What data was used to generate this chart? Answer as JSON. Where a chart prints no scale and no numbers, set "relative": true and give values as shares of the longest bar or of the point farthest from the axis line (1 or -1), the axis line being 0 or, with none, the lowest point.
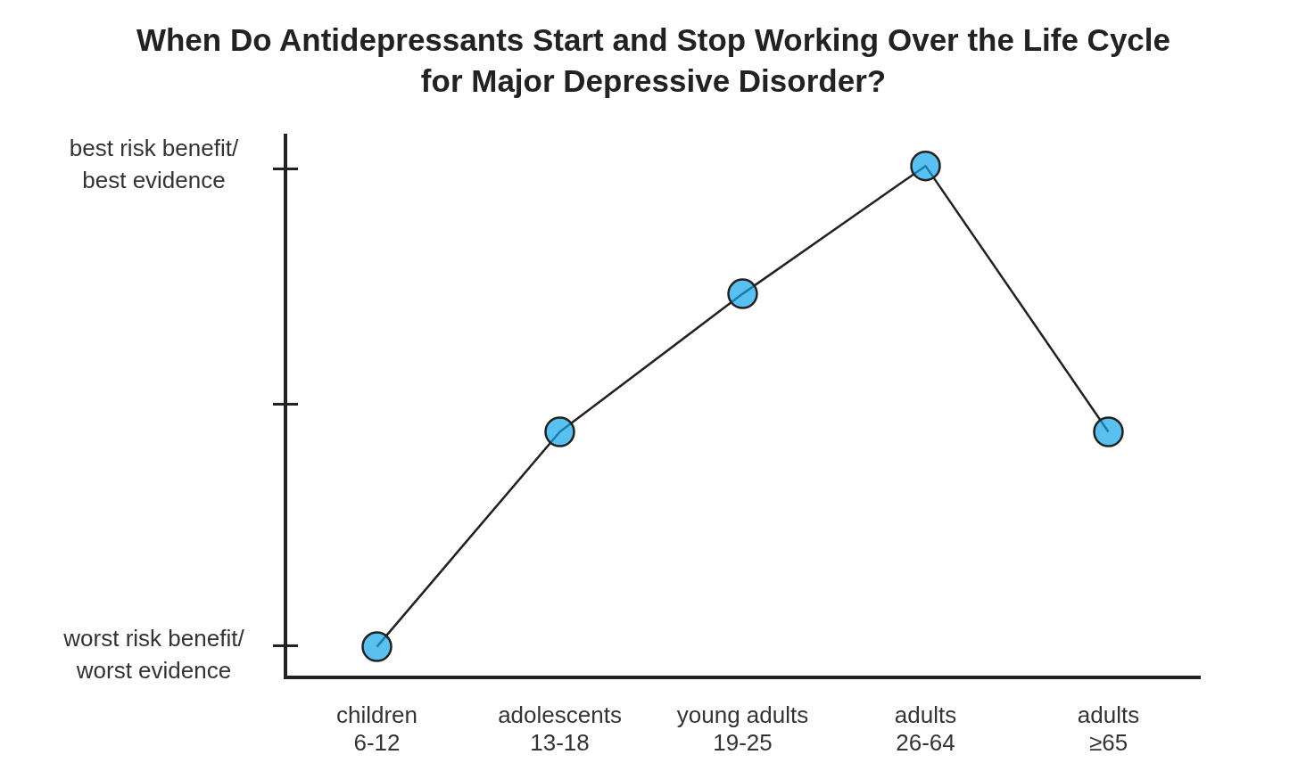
{
  "chart_data": {
    "type": "line",
    "title": "When Do Antidepressants Start and Stop Working Over the Life Cycle for Major Depressive Disorder?",
    "categories": [
      "children 6-12",
      "adolescents 13-18",
      "young adults 19-25",
      "adults 26-64",
      "adults ≥65"
    ],
    "values": [
      0.06,
      0.48,
      0.75,
      1,
      0.48
    ],
    "color": "#12a5e8",
    "marker": "circle",
    "line_style": "solid",
    "relative": true,
    "annotations": [
      "best risk benefit/best evidence",
      "worst risk benefit/worst evidence"
    ]
  }
}
